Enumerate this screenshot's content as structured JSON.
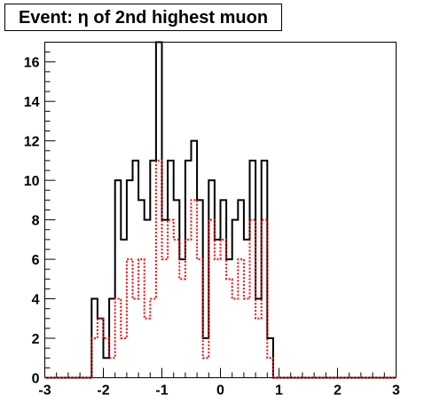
{
  "chart_data": {
    "type": "histogram",
    "title": "Event: η of 2nd highest muon",
    "xlabel": "",
    "ylabel": "",
    "xlim": [
      -3,
      3
    ],
    "ylim": [
      0,
      17
    ],
    "grid": false,
    "legend": "none",
    "x_ticks": [
      -3,
      -2,
      -1,
      0,
      1,
      2,
      3
    ],
    "y_ticks": [
      0,
      2,
      4,
      6,
      8,
      10,
      12,
      14,
      16
    ],
    "bin_edges_start": -3,
    "bin_width": 0.1,
    "series": [
      {
        "style": "solid",
        "color": "#000000",
        "values": [
          0,
          0,
          0,
          0,
          0,
          0,
          0,
          0,
          4,
          3,
          1,
          4,
          10,
          7,
          10,
          11,
          9,
          8,
          11,
          17,
          8,
          11,
          9,
          6,
          11,
          12,
          9,
          2,
          10,
          7,
          9,
          6,
          8,
          9,
          7,
          11,
          4,
          11,
          2,
          0,
          0,
          0,
          0,
          0,
          0,
          0,
          0,
          0,
          0,
          0,
          0,
          0,
          0,
          0,
          0,
          0,
          0,
          0,
          0,
          0
        ]
      },
      {
        "style": "dotted",
        "color": "#ff0000",
        "values": [
          0,
          0,
          0,
          0,
          0,
          0,
          0,
          0,
          2,
          3,
          2,
          1,
          4,
          2,
          6,
          4,
          6,
          3,
          4,
          11,
          6,
          8,
          7,
          5,
          7,
          9,
          6,
          1,
          8,
          6,
          7,
          5,
          4,
          6,
          4,
          8,
          3,
          8,
          1,
          0,
          0,
          0,
          0,
          0,
          0,
          0,
          0,
          0,
          0,
          0,
          0,
          0,
          0,
          0,
          0,
          0,
          0,
          0,
          0,
          0
        ]
      }
    ]
  }
}
